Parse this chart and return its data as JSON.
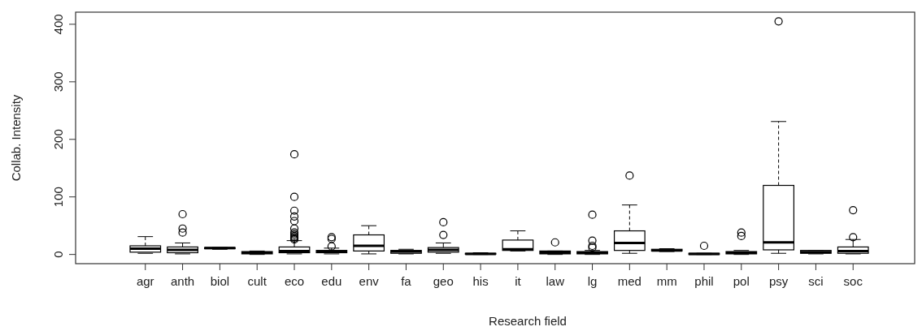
{
  "chart_data": {
    "type": "box",
    "xlabel": "Research field",
    "ylabel": "Collab. Intensity",
    "ylim": [
      -16,
      421
    ],
    "yticks": [
      0,
      100,
      200,
      300,
      400
    ],
    "grid": false,
    "color": "#000000",
    "categories": [
      "agr",
      "anth",
      "biol",
      "cult",
      "eco",
      "edu",
      "env",
      "fa",
      "geo",
      "his",
      "it",
      "law",
      "lg",
      "med",
      "mm",
      "phil",
      "pol",
      "psy",
      "sci",
      "soc"
    ],
    "boxes": [
      {
        "low": 2,
        "q1": 4,
        "median": 10,
        "q3": 15,
        "high": 31
      },
      {
        "low": 1,
        "q1": 3,
        "median": 8,
        "q3": 13,
        "high": 20,
        "outliers": [
          38,
          45,
          70
        ]
      },
      {
        "low": 9,
        "q1": 10,
        "median": 11,
        "q3": 12,
        "high": 12
      },
      {
        "low": 0,
        "q1": 1,
        "median": 3,
        "q3": 5,
        "high": 6
      },
      {
        "low": 1,
        "q1": 3,
        "median": 6,
        "q3": 13,
        "high": 24,
        "outliers": [
          26,
          28,
          30,
          32,
          35,
          38,
          45,
          58,
          66,
          76,
          100,
          174
        ]
      },
      {
        "low": 1,
        "q1": 3,
        "median": 5,
        "q3": 7,
        "high": 11,
        "outliers": [
          14,
          27,
          30
        ]
      },
      {
        "low": 1,
        "q1": 6,
        "median": 15,
        "q3": 34,
        "high": 50
      },
      {
        "low": 1,
        "q1": 2,
        "median": 5,
        "q3": 7,
        "high": 9
      },
      {
        "low": 2,
        "q1": 4,
        "median": 8,
        "q3": 12,
        "high": 20,
        "outliers": [
          34,
          56
        ]
      },
      {
        "low": 0,
        "q1": 0.5,
        "median": 1,
        "q3": 2,
        "high": 3
      },
      {
        "low": 6,
        "q1": 7,
        "median": 9,
        "q3": 25,
        "high": 41
      },
      {
        "low": 0,
        "q1": 1,
        "median": 3,
        "q3": 6,
        "high": 6,
        "outliers": [
          21
        ]
      },
      {
        "low": 0,
        "q1": 1,
        "median": 3,
        "q3": 5,
        "high": 7,
        "outliers": [
          12,
          15,
          24,
          69
        ]
      },
      {
        "low": 2,
        "q1": 7,
        "median": 20,
        "q3": 41,
        "high": 86,
        "outliers": [
          137
        ]
      },
      {
        "low": 5,
        "q1": 6,
        "median": 7,
        "q3": 9,
        "high": 10
      },
      {
        "low": 0,
        "q1": 0,
        "median": 1,
        "q3": 2,
        "high": 2,
        "outliers": [
          15
        ]
      },
      {
        "low": 0,
        "q1": 1,
        "median": 3,
        "q3": 5,
        "high": 7,
        "outliers": [
          32,
          38
        ]
      },
      {
        "low": 2,
        "q1": 8,
        "median": 21,
        "q3": 120,
        "high": 231,
        "outliers": [
          405
        ]
      },
      {
        "low": 1,
        "q1": 2,
        "median": 4,
        "q3": 7,
        "high": 7
      },
      {
        "low": 1,
        "q1": 2,
        "median": 6,
        "q3": 13,
        "high": 26,
        "outliers": [
          30,
          77
        ]
      }
    ]
  }
}
